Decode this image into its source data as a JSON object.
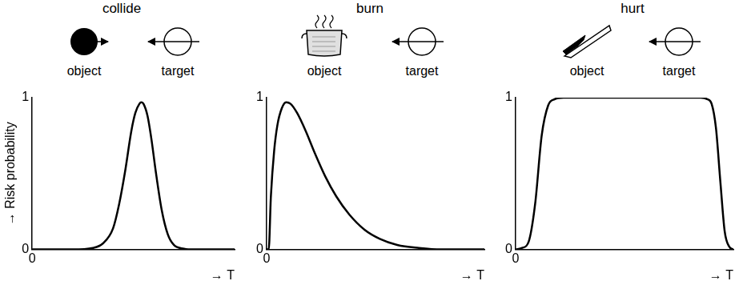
{
  "chart_data": [
    {
      "type": "line",
      "title": "collide",
      "annotations": [
        "object",
        "target"
      ],
      "x_label": "→ T",
      "y_label": "→ Risk probability",
      "color": "#000000",
      "x": [
        0,
        1,
        2,
        3,
        3.5,
        4,
        4.3,
        4.6,
        4.9,
        5.1,
        5.3,
        5.4,
        5.5,
        5.7,
        5.9,
        6.1,
        6.4,
        6.7,
        7,
        7.5,
        8,
        9,
        10
      ],
      "values": [
        0,
        0,
        0,
        0.01,
        0.04,
        0.14,
        0.3,
        0.52,
        0.78,
        0.9,
        0.96,
        0.97,
        0.96,
        0.88,
        0.72,
        0.52,
        0.26,
        0.1,
        0.03,
        0.005,
        0,
        0,
        0
      ],
      "xlim": [
        0,
        10
      ],
      "ylim": [
        0,
        1
      ],
      "xticks": [
        0
      ],
      "yticks": [
        0,
        1
      ],
      "grid": false
    },
    {
      "type": "line",
      "title": "burn",
      "annotations": [
        "object",
        "target"
      ],
      "x_label": "→ T",
      "color": "#000000",
      "x": [
        0,
        0.1,
        0.2,
        0.35,
        0.5,
        0.7,
        0.9,
        1.1,
        1.4,
        1.8,
        2.2,
        2.7,
        3.2,
        3.8,
        4.5,
        5.2,
        6,
        7,
        8,
        10
      ],
      "values": [
        0,
        0,
        0.35,
        0.65,
        0.82,
        0.93,
        0.97,
        0.96,
        0.9,
        0.78,
        0.64,
        0.48,
        0.35,
        0.23,
        0.13,
        0.07,
        0.03,
        0.01,
        0,
        0
      ],
      "xlim": [
        0,
        10
      ],
      "ylim": [
        0,
        1
      ],
      "xticks": [
        0
      ],
      "yticks": [
        0,
        1
      ],
      "grid": false
    },
    {
      "type": "line",
      "title": "hurt",
      "annotations": [
        "object",
        "target"
      ],
      "x_label": "→ T",
      "color": "#000000",
      "x": [
        0,
        0.3,
        0.6,
        0.9,
        1.2,
        1.5,
        1.8,
        2.2,
        5,
        8.5,
        8.8,
        9.0,
        9.2,
        9.4,
        9.6,
        9.8,
        10
      ],
      "values": [
        0,
        0.01,
        0.05,
        0.3,
        0.75,
        0.95,
        0.99,
        1,
        1,
        1,
        0.99,
        0.96,
        0.8,
        0.45,
        0.12,
        0.02,
        0
      ],
      "xlim": [
        0,
        10
      ],
      "ylim": [
        0,
        1
      ],
      "xticks": [
        0
      ],
      "yticks": [
        0,
        1
      ],
      "grid": false
    }
  ]
}
